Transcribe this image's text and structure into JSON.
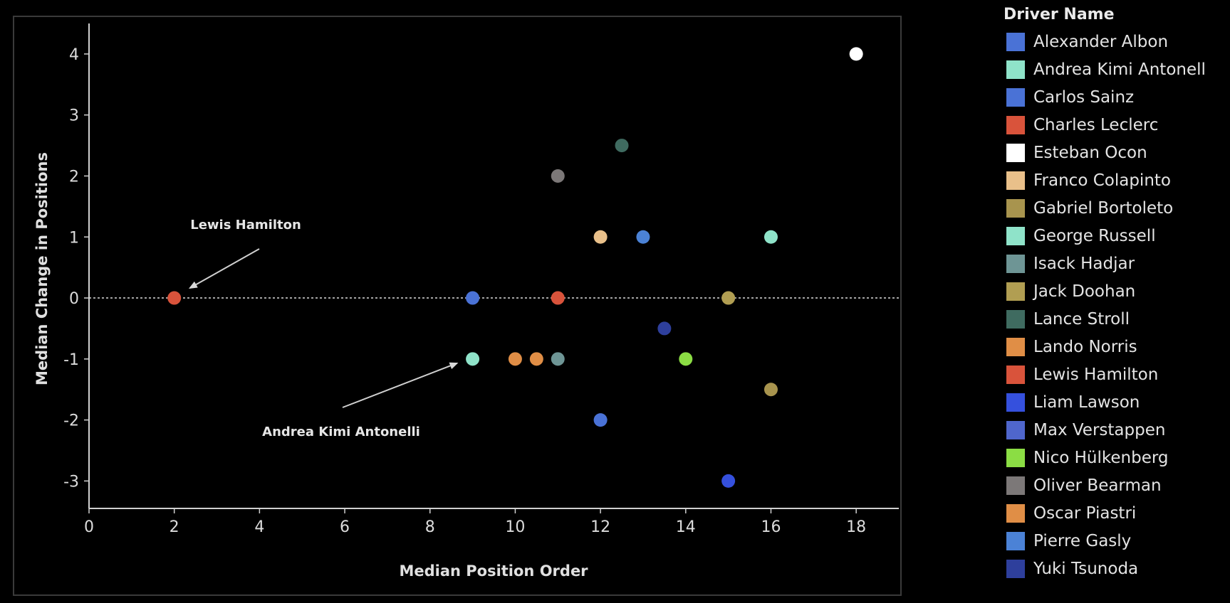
{
  "chart_data": {
    "type": "scatter",
    "xlabel": "Median Position Order",
    "ylabel": "Median Change in Positions",
    "xlim": [
      0,
      19
    ],
    "ylim": [
      -3.45,
      4.5
    ],
    "xticks": [
      0,
      2,
      4,
      6,
      8,
      10,
      12,
      14,
      16,
      18
    ],
    "yticks": [
      -3,
      -2,
      -1,
      0,
      1,
      2,
      3,
      4
    ],
    "grid": false,
    "reference_line": {
      "y": 0,
      "style": "dotted"
    },
    "legend": {
      "title": "Driver Name",
      "placement": "right",
      "items": [
        {
          "name": "Alexander Albon",
          "color": "#4a72d6"
        },
        {
          "name": "Andrea Kimi Antonell",
          "color": "#8fe3c9"
        },
        {
          "name": "Carlos Sainz",
          "color": "#4a72d6"
        },
        {
          "name": "Charles Leclerc",
          "color": "#d9533b"
        },
        {
          "name": "Esteban Ocon",
          "color": "#ffffff"
        },
        {
          "name": "Franco Colapinto",
          "color": "#e9c08a"
        },
        {
          "name": "Gabriel Bortoleto",
          "color": "#a8944e"
        },
        {
          "name": "George Russell",
          "color": "#8fe3c9"
        },
        {
          "name": "Isack Hadjar",
          "color": "#6e9595"
        },
        {
          "name": "Jack Doohan",
          "color": "#b19e52"
        },
        {
          "name": "Lance Stroll",
          "color": "#3f6b60"
        },
        {
          "name": "Lando Norris",
          "color": "#e08e46"
        },
        {
          "name": "Lewis Hamilton",
          "color": "#d9533b"
        },
        {
          "name": "Liam Lawson",
          "color": "#3550dd"
        },
        {
          "name": "Max Verstappen",
          "color": "#4f66cc"
        },
        {
          "name": "Nico Hülkenberg",
          "color": "#8bdd44"
        },
        {
          "name": "Oliver Bearman",
          "color": "#7c7878"
        },
        {
          "name": "Oscar Piastri",
          "color": "#e08e46"
        },
        {
          "name": "Pierre Gasly",
          "color": "#4b82d6"
        },
        {
          "name": "Yuki Tsunoda",
          "color": "#2e3f9c"
        }
      ]
    },
    "points": [
      {
        "driver": "Lewis Hamilton",
        "x": 2,
        "y": 0,
        "color": "#d9533b"
      },
      {
        "driver": "Carlos Sainz",
        "x": 9,
        "y": 0,
        "color": "#4a72d6"
      },
      {
        "driver": "Andrea Kimi Antonelli",
        "x": 9,
        "y": -1,
        "color": "#8fe3c9"
      },
      {
        "driver": "Lando Norris",
        "x": 10,
        "y": -1,
        "color": "#e08e46"
      },
      {
        "driver": "Oscar Piastri",
        "x": 10.5,
        "y": -1,
        "color": "#e08e46"
      },
      {
        "driver": "Isack Hadjar",
        "x": 11,
        "y": -1,
        "color": "#6e9595"
      },
      {
        "driver": "Charles Leclerc",
        "x": 11,
        "y": 0,
        "color": "#d9533b"
      },
      {
        "driver": "Oliver Bearman",
        "x": 11,
        "y": 2,
        "color": "#7c7878"
      },
      {
        "driver": "Franco Colapinto",
        "x": 12,
        "y": 1,
        "color": "#e9c08a"
      },
      {
        "driver": "Alexander Albon",
        "x": 12,
        "y": -2,
        "color": "#4a72d6"
      },
      {
        "driver": "Lance Stroll",
        "x": 12.5,
        "y": 2.5,
        "color": "#3f6b60"
      },
      {
        "driver": "Pierre Gasly",
        "x": 13,
        "y": 1,
        "color": "#4b82d6"
      },
      {
        "driver": "Yuki Tsunoda",
        "x": 13.5,
        "y": -0.5,
        "color": "#2e3f9c"
      },
      {
        "driver": "Nico Hülkenberg",
        "x": 14,
        "y": -1,
        "color": "#8bdd44"
      },
      {
        "driver": "Jack Doohan",
        "x": 15,
        "y": 0,
        "color": "#b19e52"
      },
      {
        "driver": "Liam Lawson",
        "x": 15,
        "y": -3,
        "color": "#3550dd"
      },
      {
        "driver": "George Russell",
        "x": 16,
        "y": 1,
        "color": "#8fe3c9"
      },
      {
        "driver": "Gabriel Bortoleto",
        "x": 16,
        "y": -1.5,
        "color": "#a8944e"
      },
      {
        "driver": "Esteban Ocon",
        "x": 18,
        "y": 4,
        "color": "#ffffff"
      }
    ],
    "annotations": [
      {
        "text": "Lewis Hamilton",
        "target_x": 2,
        "target_y": 0
      },
      {
        "text": "Andrea Kimi Antonelli",
        "target_x": 9,
        "target_y": -1
      }
    ]
  }
}
